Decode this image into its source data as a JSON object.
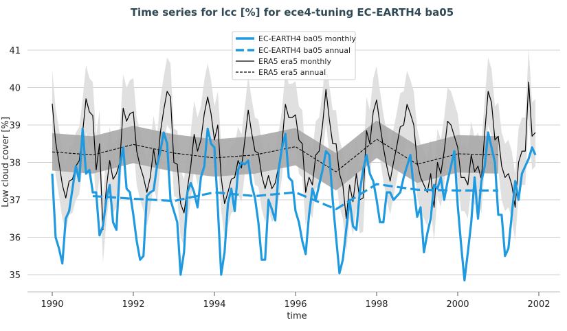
{
  "chart_data": {
    "type": "line",
    "title": "Time series for lcc [%] for ece4-tuning EC-EARTH4 ba05",
    "xlabel": "time",
    "ylabel": "Low cloud cover [%]",
    "xlim": [
      1989.4,
      2002.5
    ],
    "ylim": [
      34.55,
      41.5
    ],
    "xticks": [
      1990,
      1992,
      1994,
      1996,
      1998,
      2000,
      2002
    ],
    "yticks": [
      35,
      36,
      37,
      38,
      39,
      40,
      41
    ],
    "grid": "horizontal",
    "legend_position": "top-center",
    "colors": {
      "ec": "#1f9ae0",
      "era": "#000000",
      "band_light": "#dddddd",
      "band_dark": "#a9a9a9",
      "title": "#2f4a55"
    },
    "series": [
      {
        "name": "EC-EARTH4 ba05 monthly",
        "start": 1990,
        "step": "monthly",
        "values": [
          37.7,
          36.0,
          35.7,
          35.3,
          36.5,
          36.7,
          37.3,
          37.9,
          37.5,
          38.9,
          37.7,
          37.8,
          37.2,
          37.2,
          36.05,
          36.3,
          37.0,
          37.4,
          36.4,
          36.2,
          37.9,
          38.4,
          37.3,
          37.2,
          36.6,
          35.9,
          35.4,
          35.5,
          37.1,
          37.2,
          37.25,
          37.9,
          38.3,
          38.8,
          38.5,
          37.0,
          36.7,
          36.4,
          35.0,
          35.6,
          37.2,
          37.45,
          37.2,
          36.8,
          37.6,
          37.9,
          38.9,
          38.5,
          38.4,
          36.8,
          35.0,
          35.6,
          36.9,
          37.3,
          36.7,
          37.8,
          38.0,
          37.95,
          38.05,
          37.4,
          37.05,
          36.4,
          35.4,
          35.4,
          37.0,
          36.75,
          36.45,
          37.8,
          38.4,
          38.76,
          37.6,
          37.5,
          36.7,
          36.4,
          35.9,
          35.55,
          36.6,
          37.3,
          37.0,
          37.4,
          37.8,
          38.3,
          38.2,
          37.0,
          36.0,
          35.04,
          35.4,
          36.2,
          37.0,
          36.3,
          36.2,
          37.2,
          37.8,
          38.2,
          37.7,
          37.5,
          37.0,
          36.4,
          36.4,
          37.2,
          37.2,
          37.0,
          37.1,
          37.2,
          37.6,
          37.9,
          38.2,
          37.3,
          36.55,
          36.8,
          35.6,
          36.1,
          36.5,
          37.4,
          37.3,
          37.6,
          37.0,
          37.5,
          37.9,
          38.3,
          36.85,
          35.8,
          34.85,
          35.6,
          36.4,
          37.6,
          36.5,
          37.5,
          37.9,
          38.8,
          38.4,
          38.0,
          36.6,
          36.6,
          35.5,
          35.7,
          36.6,
          37.5,
          37.0,
          37.7,
          37.9,
          38.1,
          38.4,
          38.2
        ]
      },
      {
        "name": "EC-EARTH4 ba05 annual",
        "x": [
          1991,
          1992,
          1993,
          1994,
          1995,
          1996,
          1997,
          1998,
          1999,
          2000,
          2001
        ],
        "values": [
          37.1,
          37.03,
          36.97,
          37.2,
          37.1,
          37.2,
          36.75,
          37.42,
          37.27,
          37.25,
          37.25
        ]
      },
      {
        "name": "ERA5 era5 monthly",
        "start": 1990,
        "step": "monthly",
        "values": [
          39.57,
          38.55,
          38.0,
          37.4,
          37.05,
          37.5,
          37.55,
          37.9,
          38.05,
          38.8,
          39.7,
          39.35,
          39.25,
          37.8,
          38.5,
          36.2,
          37.3,
          38.05,
          37.55,
          37.7,
          38.0,
          39.45,
          39.1,
          39.3,
          39.35,
          38.3,
          37.9,
          37.6,
          37.2,
          37.6,
          38.35,
          37.8,
          38.8,
          39.4,
          39.9,
          39.75,
          38.0,
          37.95,
          36.9,
          36.65,
          37.3,
          37.9,
          38.75,
          38.3,
          38.6,
          39.3,
          39.75,
          39.3,
          38.6,
          39.0,
          37.6,
          36.9,
          37.2,
          37.55,
          37.6,
          38.05,
          37.85,
          38.6,
          39.4,
          38.8,
          38.3,
          38.25,
          37.65,
          37.3,
          37.65,
          37.3,
          37.45,
          37.9,
          38.5,
          39.55,
          39.2,
          39.2,
          39.27,
          38.6,
          38.5,
          37.2,
          37.6,
          37.4,
          38.2,
          38.3,
          39.0,
          39.95,
          39.15,
          38.5,
          38.5,
          37.7,
          37.4,
          36.5,
          37.4,
          36.95,
          37.7,
          37.0,
          37.05,
          38.85,
          38.5,
          39.35,
          39.67,
          39.0,
          38.4,
          37.9,
          37.5,
          38.0,
          38.45,
          38.95,
          39.0,
          39.55,
          39.3,
          39.0,
          38.0,
          37.6,
          37.4,
          37.2,
          37.7,
          36.8,
          38.0,
          37.7,
          38.3,
          39.1,
          39.0,
          38.7,
          38.4,
          37.6,
          37.6,
          37.4,
          38.2,
          37.75,
          37.9,
          37.55,
          38.8,
          39.9,
          39.6,
          38.6,
          38.7,
          37.9,
          37.6,
          37.7,
          37.4,
          36.8,
          38.0,
          38.3,
          38.3,
          40.15,
          38.7,
          38.8
        ]
      },
      {
        "name": "ERA5 era5 annual",
        "x": [
          1990,
          1991,
          1992,
          1993,
          1994,
          1995,
          1996,
          1997,
          1998,
          1999,
          2000,
          2001
        ],
        "values": [
          38.28,
          38.2,
          38.48,
          38.25,
          38.12,
          38.2,
          38.42,
          37.75,
          38.62,
          37.95,
          38.23,
          38.2
        ]
      }
    ],
    "bands": {
      "monthly_spread": 0.9,
      "annual_spread": 0.5
    }
  }
}
